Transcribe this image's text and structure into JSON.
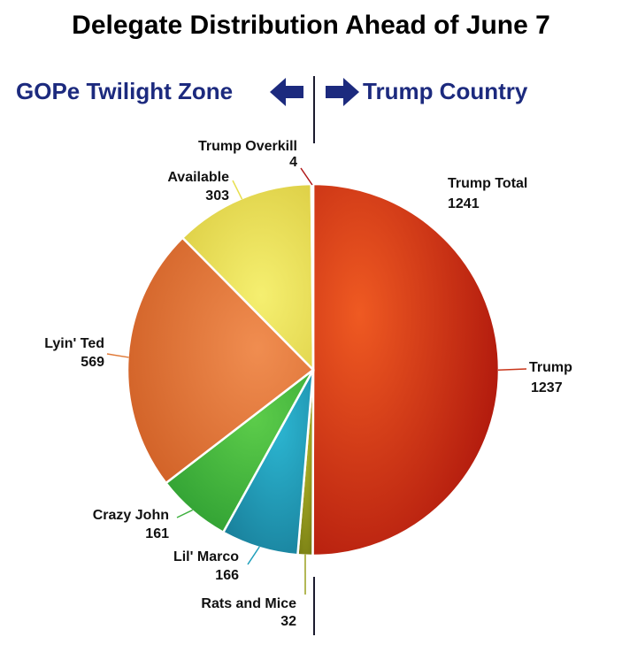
{
  "header": {
    "title": "Delegate Distribution Ahead of June 7",
    "left_label": "GOPe Twilight Zone",
    "right_label": "Trump Country"
  },
  "colors": {
    "nav_blue": "#1c2a7e",
    "trump": "#c9361a",
    "trump_overkill": "#b01818",
    "available": "#e8e050",
    "lyin_ted": "#e07a38",
    "crazy_john": "#3fb13f",
    "lil_marco": "#1f9fbb",
    "rats_and_mice": "#9aa01e"
  },
  "icons": {
    "left_arrow": "arrow-left-icon",
    "right_arrow": "arrow-right-icon"
  },
  "chart_data": {
    "type": "pie",
    "title": "Delegate Distribution Ahead of June 7",
    "slices": [
      {
        "label": "Trump",
        "value": 1237,
        "color": "#c9361a"
      },
      {
        "label": "Rats and Mice",
        "value": 32,
        "color": "#9aa01e"
      },
      {
        "label": "Lil' Marco",
        "value": 166,
        "color": "#1f9fbb"
      },
      {
        "label": "Crazy John",
        "value": 161,
        "color": "#3fb13f"
      },
      {
        "label": "Lyin' Ted",
        "value": 569,
        "color": "#e07a38"
      },
      {
        "label": "Available",
        "value": 303,
        "color": "#e8e050"
      },
      {
        "label": "Trump Overkill",
        "value": 4,
        "color": "#b01818"
      }
    ],
    "annotations": [
      {
        "label": "Trump Total",
        "value": "1241"
      }
    ]
  }
}
